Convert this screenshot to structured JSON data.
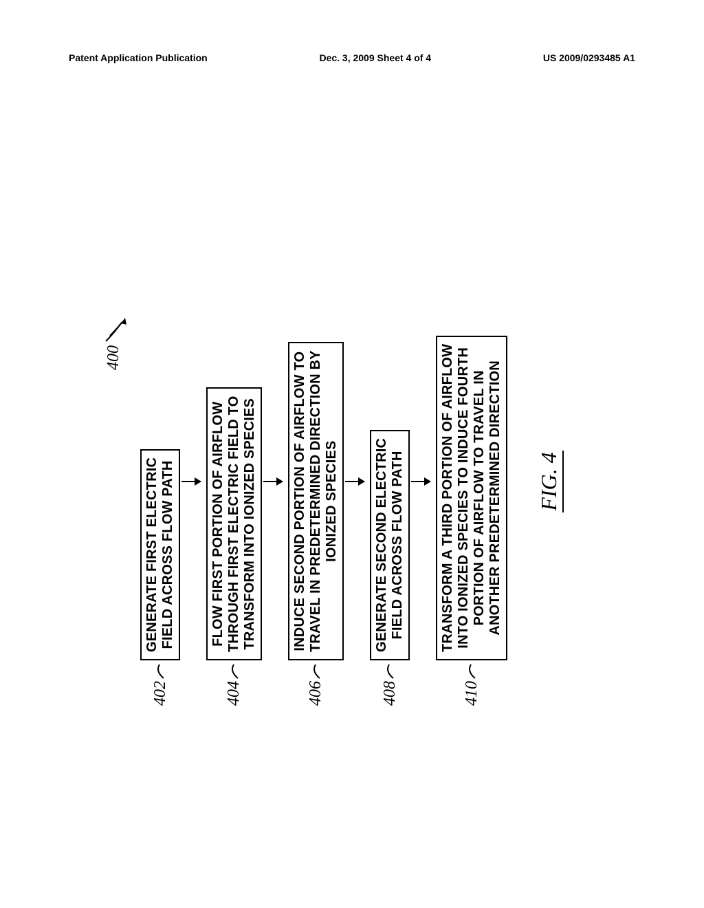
{
  "header": {
    "left": "Patent Application Publication",
    "center": "Dec. 3, 2009  Sheet 4 of 4",
    "right": "US 2009/0293485 A1"
  },
  "flowchart": {
    "main_ref": "400",
    "figure_label": "FIG. 4",
    "steps": [
      {
        "ref": "402",
        "text": "GENERATE FIRST ELECTRIC\nFIELD ACROSS FLOW PATH"
      },
      {
        "ref": "404",
        "text": "FLOW FIRST PORTION OF AIRFLOW\nTHROUGH FIRST ELECTRIC FIELD TO\nTRANSFORM INTO IONIZED SPECIES"
      },
      {
        "ref": "406",
        "text": "INDUCE SECOND PORTION OF AIRFLOW TO\nTRAVEL IN PREDETERMINED DIRECTION BY\nIONIZED SPECIES"
      },
      {
        "ref": "408",
        "text": "GENERATE SECOND ELECTRIC\nFIELD ACROSS FLOW PATH"
      },
      {
        "ref": "410",
        "text": "TRANSFORM A THIRD PORTION OF AIRFLOW\nINTO IONIZED SPECIES TO INDUCE FOURTH\nPORTION OF AIRFLOW TO TRAVEL IN\nANOTHER PREDETERMINED DIRECTION"
      }
    ]
  },
  "style": {
    "box_border": "#000000",
    "bg": "#ffffff",
    "text_color": "#000000"
  }
}
